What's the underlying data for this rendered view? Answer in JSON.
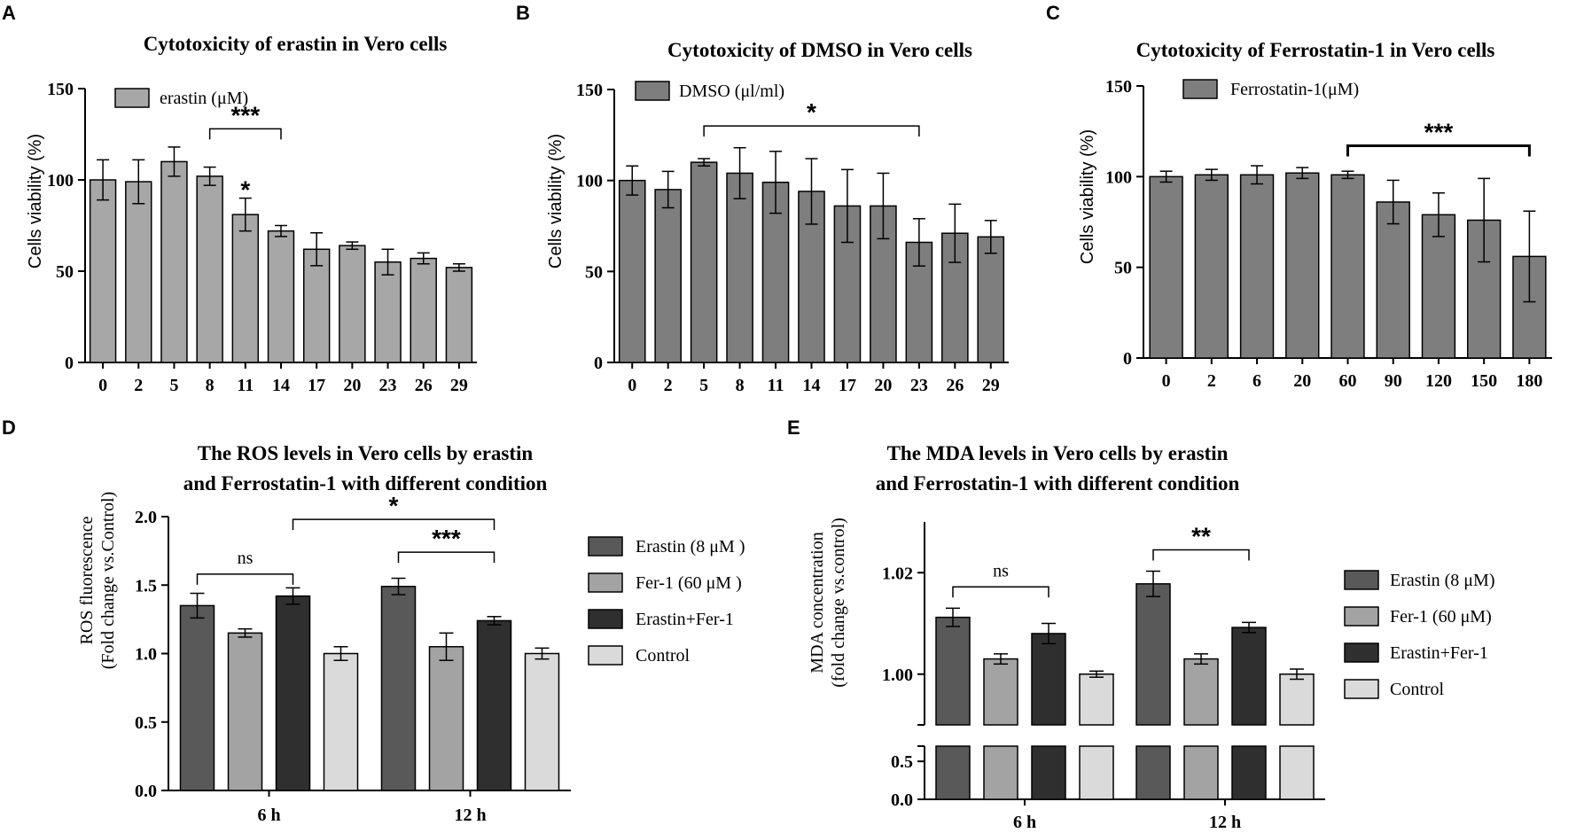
{
  "colors": {
    "bar_grey": "#a7a7a7",
    "bar_dark_grey": "#7e7e7e",
    "erastin": "#595959",
    "fer1": "#a3a3a3",
    "combo": "#2f2f2f",
    "control": "#dadada",
    "axis": "#000000"
  },
  "chart_data": [
    {
      "id": "A",
      "panel_letter": "A",
      "type": "bar",
      "title": "Cytotoxicity of erastin in Vero cells",
      "ylabel": "Cells viability (%)",
      "xlabel": "",
      "legend": "erastin (μM)",
      "legend_position": "top-left",
      "ylim": [
        0,
        150
      ],
      "yticks": [
        0,
        50,
        100,
        150
      ],
      "categories": [
        "0",
        "2",
        "5",
        "8",
        "11",
        "14",
        "17",
        "20",
        "23",
        "26",
        "29"
      ],
      "values": [
        100,
        99,
        110,
        102,
        81,
        72,
        62,
        64,
        55,
        57,
        52
      ],
      "errors": [
        11,
        12,
        8,
        5,
        9,
        3,
        9,
        2,
        7,
        3,
        2
      ],
      "annotations": [
        {
          "text": "***",
          "type": "bracket",
          "from": 3,
          "to": 5,
          "y": 128
        },
        {
          "text": "*",
          "type": "star",
          "at": 4,
          "y": 94
        }
      ]
    },
    {
      "id": "B",
      "panel_letter": "B",
      "type": "bar",
      "title": "Cytotoxicity of DMSO in Vero cells",
      "ylabel": "Cells viability (%)",
      "xlabel": "",
      "legend": "DMSO (μl/ml)",
      "legend_position": "top-left",
      "ylim": [
        0,
        150
      ],
      "yticks": [
        0,
        50,
        100,
        150
      ],
      "categories": [
        "0",
        "2",
        "5",
        "8",
        "11",
        "14",
        "17",
        "20",
        "23",
        "26",
        "29"
      ],
      "values": [
        100,
        95,
        110,
        104,
        99,
        94,
        86,
        86,
        66,
        71,
        69
      ],
      "errors": [
        8,
        10,
        2,
        14,
        17,
        18,
        20,
        18,
        13,
        16,
        9
      ],
      "annotations": [
        {
          "text": "*",
          "type": "bracket",
          "from": 2,
          "to": 8,
          "y": 130
        }
      ]
    },
    {
      "id": "C",
      "panel_letter": "C",
      "type": "bar",
      "title": "Cytotoxicity of Ferrostatin-1 in Vero cells",
      "ylabel": "Cells viability (%)",
      "xlabel": "",
      "legend": "Ferrostatin-1(μM)",
      "legend_position": "top-left",
      "ylim": [
        0,
        150
      ],
      "yticks": [
        0,
        50,
        100,
        150
      ],
      "categories": [
        "0",
        "2",
        "6",
        "20",
        "60",
        "90",
        "120",
        "150",
        "180"
      ],
      "values": [
        100,
        101,
        101,
        102,
        101,
        86,
        79,
        76,
        56
      ],
      "errors": [
        3,
        3,
        5,
        3,
        2,
        12,
        12,
        23,
        25
      ],
      "annotations": [
        {
          "text": "***",
          "type": "bracket",
          "from": 4,
          "to": 8,
          "y": 117,
          "bold": true
        }
      ]
    },
    {
      "id": "D",
      "panel_letter": "D",
      "type": "bar",
      "title": [
        "The ROS levels in Vero cells by erastin",
        "and Ferrostatin-1 with different condition"
      ],
      "ylabel": [
        "ROS fluorescence",
        "(Fold change vs.Control)"
      ],
      "xlabel": "",
      "ylim": [
        0,
        2.0
      ],
      "yticks": [
        "0.0",
        "0.5",
        "1.0",
        "1.5",
        "2.0"
      ],
      "categories": [
        "6 h",
        "12 h"
      ],
      "series": [
        {
          "name": "Erastin (8 μM )",
          "values": [
            1.35,
            1.49
          ],
          "errors": [
            0.09,
            0.06
          ]
        },
        {
          "name": "Fer-1 (60 μM )",
          "values": [
            1.15,
            1.05
          ],
          "errors": [
            0.03,
            0.1
          ]
        },
        {
          "name": "Erastin+Fer-1",
          "values": [
            1.42,
            1.24
          ],
          "errors": [
            0.06,
            0.03
          ]
        },
        {
          "name": "Control",
          "values": [
            1.0,
            1.0
          ],
          "errors": [
            0.05,
            0.04
          ]
        }
      ],
      "legend_position": "right",
      "annotations": [
        {
          "text": "ns",
          "from": [
            0,
            0
          ],
          "to": [
            0,
            2
          ],
          "y": 1.58
        },
        {
          "text": "*",
          "from": [
            0,
            2
          ],
          "to": [
            1,
            2
          ],
          "y": 1.98
        },
        {
          "text": "***",
          "from": [
            1,
            0
          ],
          "to": [
            1,
            2
          ],
          "y": 1.74
        }
      ]
    },
    {
      "id": "E",
      "panel_letter": "E",
      "type": "bar",
      "title": [
        "The MDA levels in Vero cells by erastin",
        "and Ferrostatin-1 with different condition"
      ],
      "ylabel": [
        "MDA concentration",
        "(fold change vs.control)"
      ],
      "xlabel": "",
      "ylim_lower": [
        0,
        0.7
      ],
      "ylim_upper": [
        0.99,
        1.03
      ],
      "yticks_lower": [
        "0.0",
        "0.5"
      ],
      "yticks_upper": [
        "1.00",
        "1.02"
      ],
      "categories": [
        "6 h",
        "12 h"
      ],
      "series": [
        {
          "name": "Erastin (8 μM)",
          "values": [
            1.0112,
            1.0178
          ],
          "errors": [
            0.0018,
            0.0025
          ]
        },
        {
          "name": "Fer-1 (60 μM)",
          "values": [
            1.003,
            1.003
          ],
          "errors": [
            0.001,
            0.001
          ]
        },
        {
          "name": "Erastin+Fer-1",
          "values": [
            1.008,
            1.0092
          ],
          "errors": [
            0.002,
            0.001
          ]
        },
        {
          "name": "Control",
          "values": [
            1.0,
            1.0
          ],
          "errors": [
            0.0006,
            0.001
          ]
        }
      ],
      "legend_position": "right",
      "annotations": [
        {
          "text": "ns",
          "from": [
            0,
            0
          ],
          "to": [
            0,
            2
          ],
          "y": 1.0172
        },
        {
          "text": "**",
          "from": [
            1,
            0
          ],
          "to": [
            1,
            2
          ],
          "y": 1.0245
        }
      ]
    }
  ]
}
